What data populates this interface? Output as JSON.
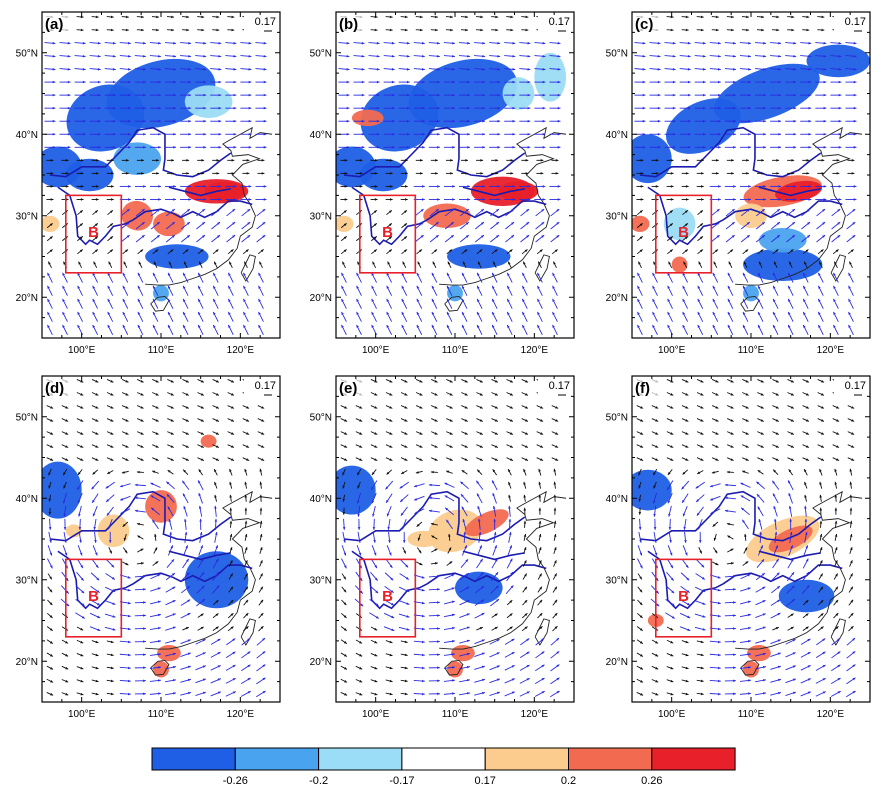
{
  "figure": {
    "panels": [
      {
        "label": "(a)",
        "ref_value": "0.17",
        "box_label": "B"
      },
      {
        "label": "(b)",
        "ref_value": "0.17",
        "box_label": "B"
      },
      {
        "label": "(c)",
        "ref_value": "0.17",
        "box_label": "B"
      },
      {
        "label": "(d)",
        "ref_value": "0.17",
        "box_label": "B"
      },
      {
        "label": "(e)",
        "ref_value": "0.17",
        "box_label": "B"
      },
      {
        "label": "(f)",
        "ref_value": "0.17",
        "box_label": "B"
      }
    ],
    "lat_ticks": [
      "20°N",
      "30°N",
      "40°N",
      "50°N"
    ],
    "lon_ticks": [
      "100°E",
      "110°E",
      "120°E"
    ],
    "colorbar": {
      "colors": [
        "#1f5fe6",
        "#4aa3ef",
        "#9bdcf6",
        "#ffffff",
        "#fbcc8e",
        "#f26a50",
        "#e8202a"
      ],
      "labels": [
        "-0.26",
        "-0.2",
        "-0.17",
        "0.17",
        "0.2",
        "0.26"
      ]
    },
    "colors": {
      "frame": "#000000",
      "box": "#e8202a",
      "river": "#1b1bb0",
      "vector_sig": "#2a2ae0",
      "vector_plain": "#111111"
    }
  }
}
